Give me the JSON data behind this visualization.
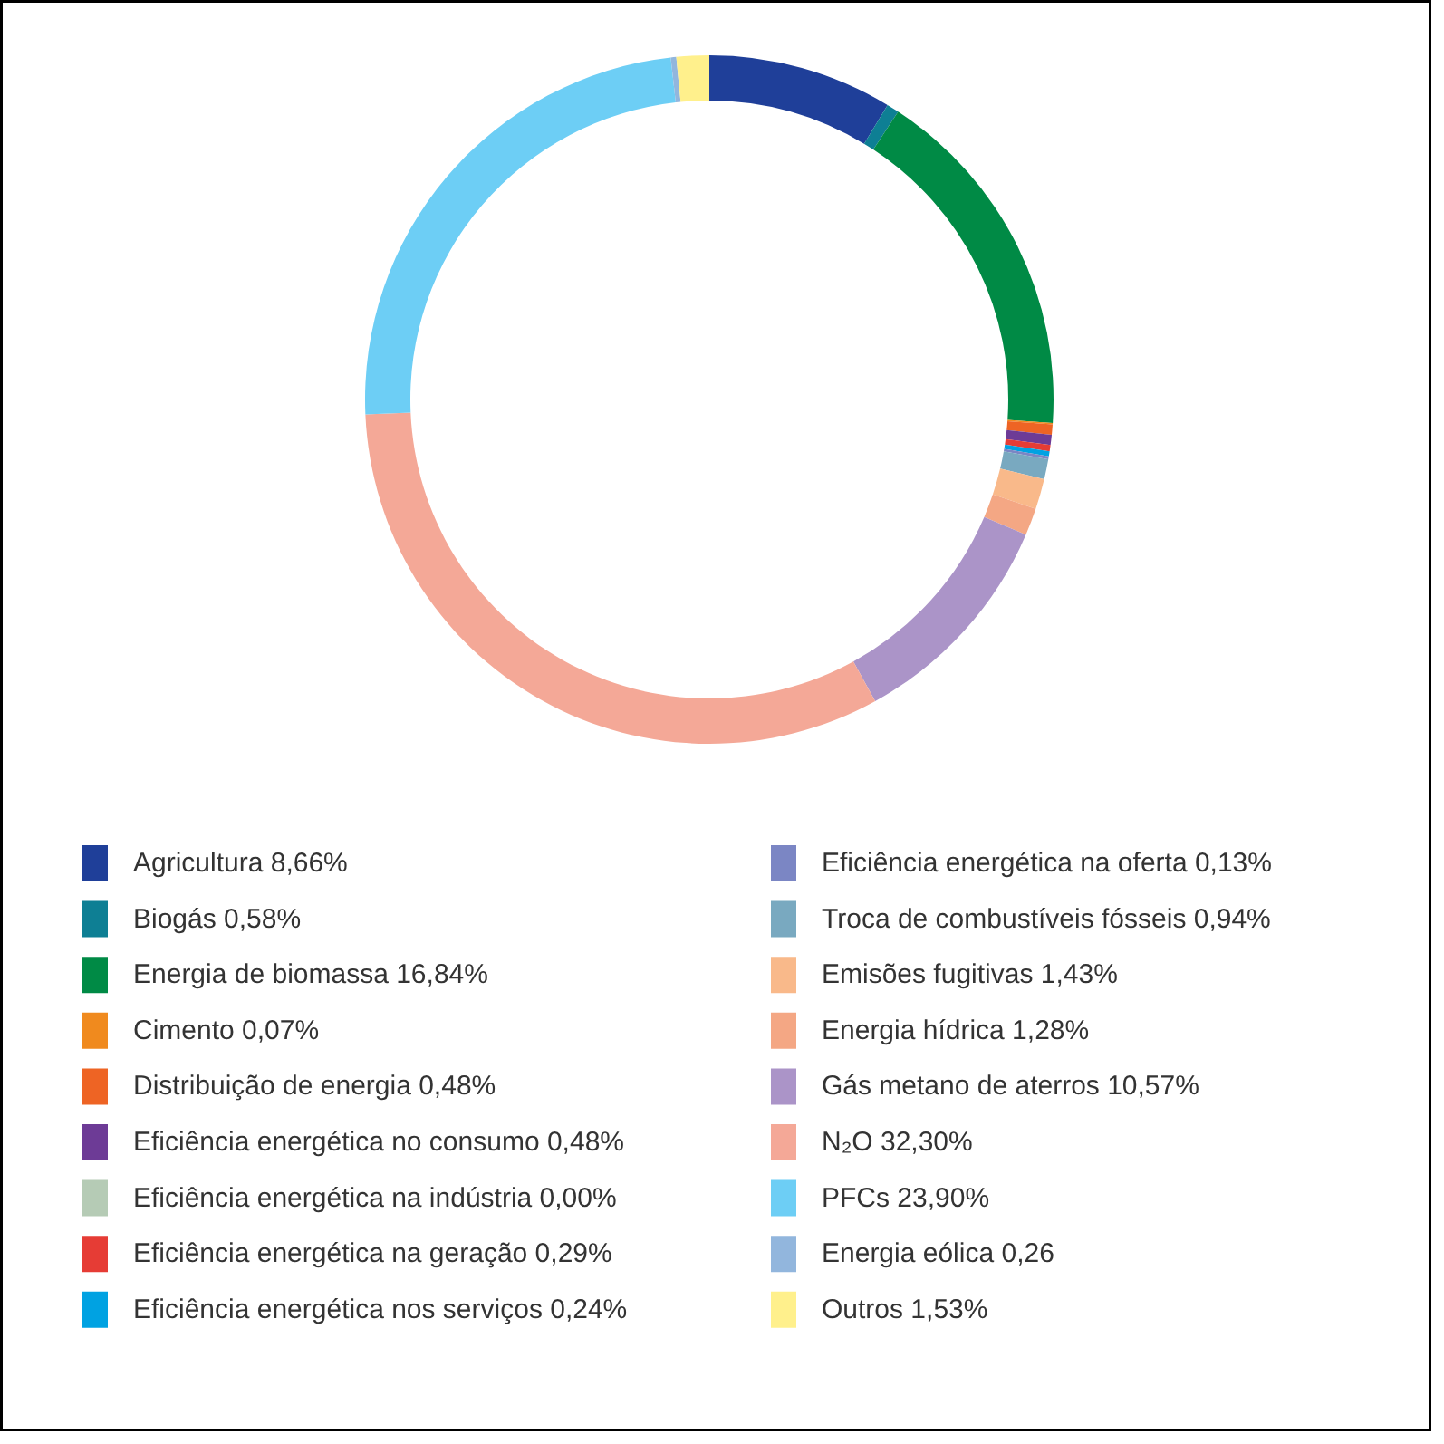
{
  "chart_data": {
    "type": "donut",
    "categories": [
      "Agricultura",
      "Biogás",
      "Energia de biomassa",
      "Cimento",
      "Distribuição de energia",
      "Eficiência energética no consumo",
      "Eficiência energética na indústria",
      "Eficiência energética na geração",
      "Eficiência energética nos serviços",
      "Eficiência energética na oferta",
      "Troca de combustíveis fósseis",
      "Emisões fugitivas",
      "Energia hídrica",
      "Gás metano de aterros",
      "N₂O",
      "PFCs",
      "Energia eólica",
      "Outros"
    ],
    "values": [
      8.66,
      0.58,
      16.84,
      0.07,
      0.48,
      0.48,
      0.0,
      0.29,
      0.24,
      0.13,
      0.94,
      1.43,
      1.28,
      10.57,
      32.3,
      23.9,
      0.26,
      1.53
    ],
    "value_labels": [
      "8,66%",
      "0,58%",
      "16,84%",
      "0,07%",
      "0,48%",
      "0,48%",
      "0,00%",
      "0,29%",
      "0,24%",
      "0,13%",
      "0,94%",
      "1,43%",
      "1,28%",
      "10,57%",
      "32,30%",
      "23,90%",
      "0,26",
      "1,53%"
    ],
    "colors": [
      "#1f3f99",
      "#0e7f94",
      "#008a45",
      "#f08a1e",
      "#ee6424",
      "#6d3b96",
      "#b5cbb5",
      "#e63c35",
      "#00a2e2",
      "#7b86c4",
      "#79a9c0",
      "#f9b98a",
      "#f4a784",
      "#ab94c8",
      "#f4a897",
      "#6dcef5",
      "#92b6dd",
      "#fff08c"
    ],
    "legend": "bottom"
  }
}
